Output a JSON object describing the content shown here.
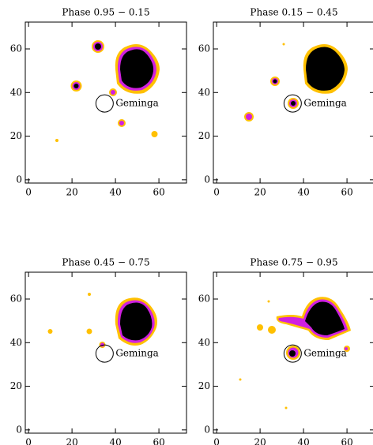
{
  "chart_data": [
    {
      "type": "image",
      "title": "Phase 0.95 − 0.15",
      "xlim": [
        -1.5,
        72.7
      ],
      "ylim": [
        -1.5,
        72.3
      ],
      "xticks": [
        0,
        20,
        40,
        60
      ],
      "yticks": [
        0,
        20,
        40,
        60
      ],
      "annotations": [
        {
          "text": "Geminga",
          "x": 35,
          "y": 35
        }
      ]
    },
    {
      "type": "image",
      "title": "Phase 0.15 − 0.45",
      "xlim": [
        -1.5,
        72.7
      ],
      "ylim": [
        -1.5,
        72.3
      ],
      "xticks": [
        0,
        20,
        40,
        60
      ],
      "yticks": [
        0,
        20,
        40,
        60
      ],
      "annotations": [
        {
          "text": "Geminga",
          "x": 35,
          "y": 35
        }
      ]
    },
    {
      "type": "image",
      "title": "Phase 0.45 − 0.75",
      "xlim": [
        -1.5,
        72.7
      ],
      "ylim": [
        -1.5,
        72.3
      ],
      "xticks": [
        0,
        20,
        40,
        60
      ],
      "yticks": [
        0,
        20,
        40,
        60
      ],
      "annotations": [
        {
          "text": "Geminga",
          "x": 35,
          "y": 35
        }
      ]
    },
    {
      "type": "image",
      "title": "Phase 0.75 − 0.95",
      "xlim": [
        -1.5,
        72.7
      ],
      "ylim": [
        -1.5,
        72.3
      ],
      "xticks": [
        0,
        20,
        40,
        60
      ],
      "yticks": [
        0,
        20,
        40,
        60
      ],
      "annotations": [
        {
          "text": "Geminga",
          "x": 35,
          "y": 35
        }
      ]
    }
  ]
}
